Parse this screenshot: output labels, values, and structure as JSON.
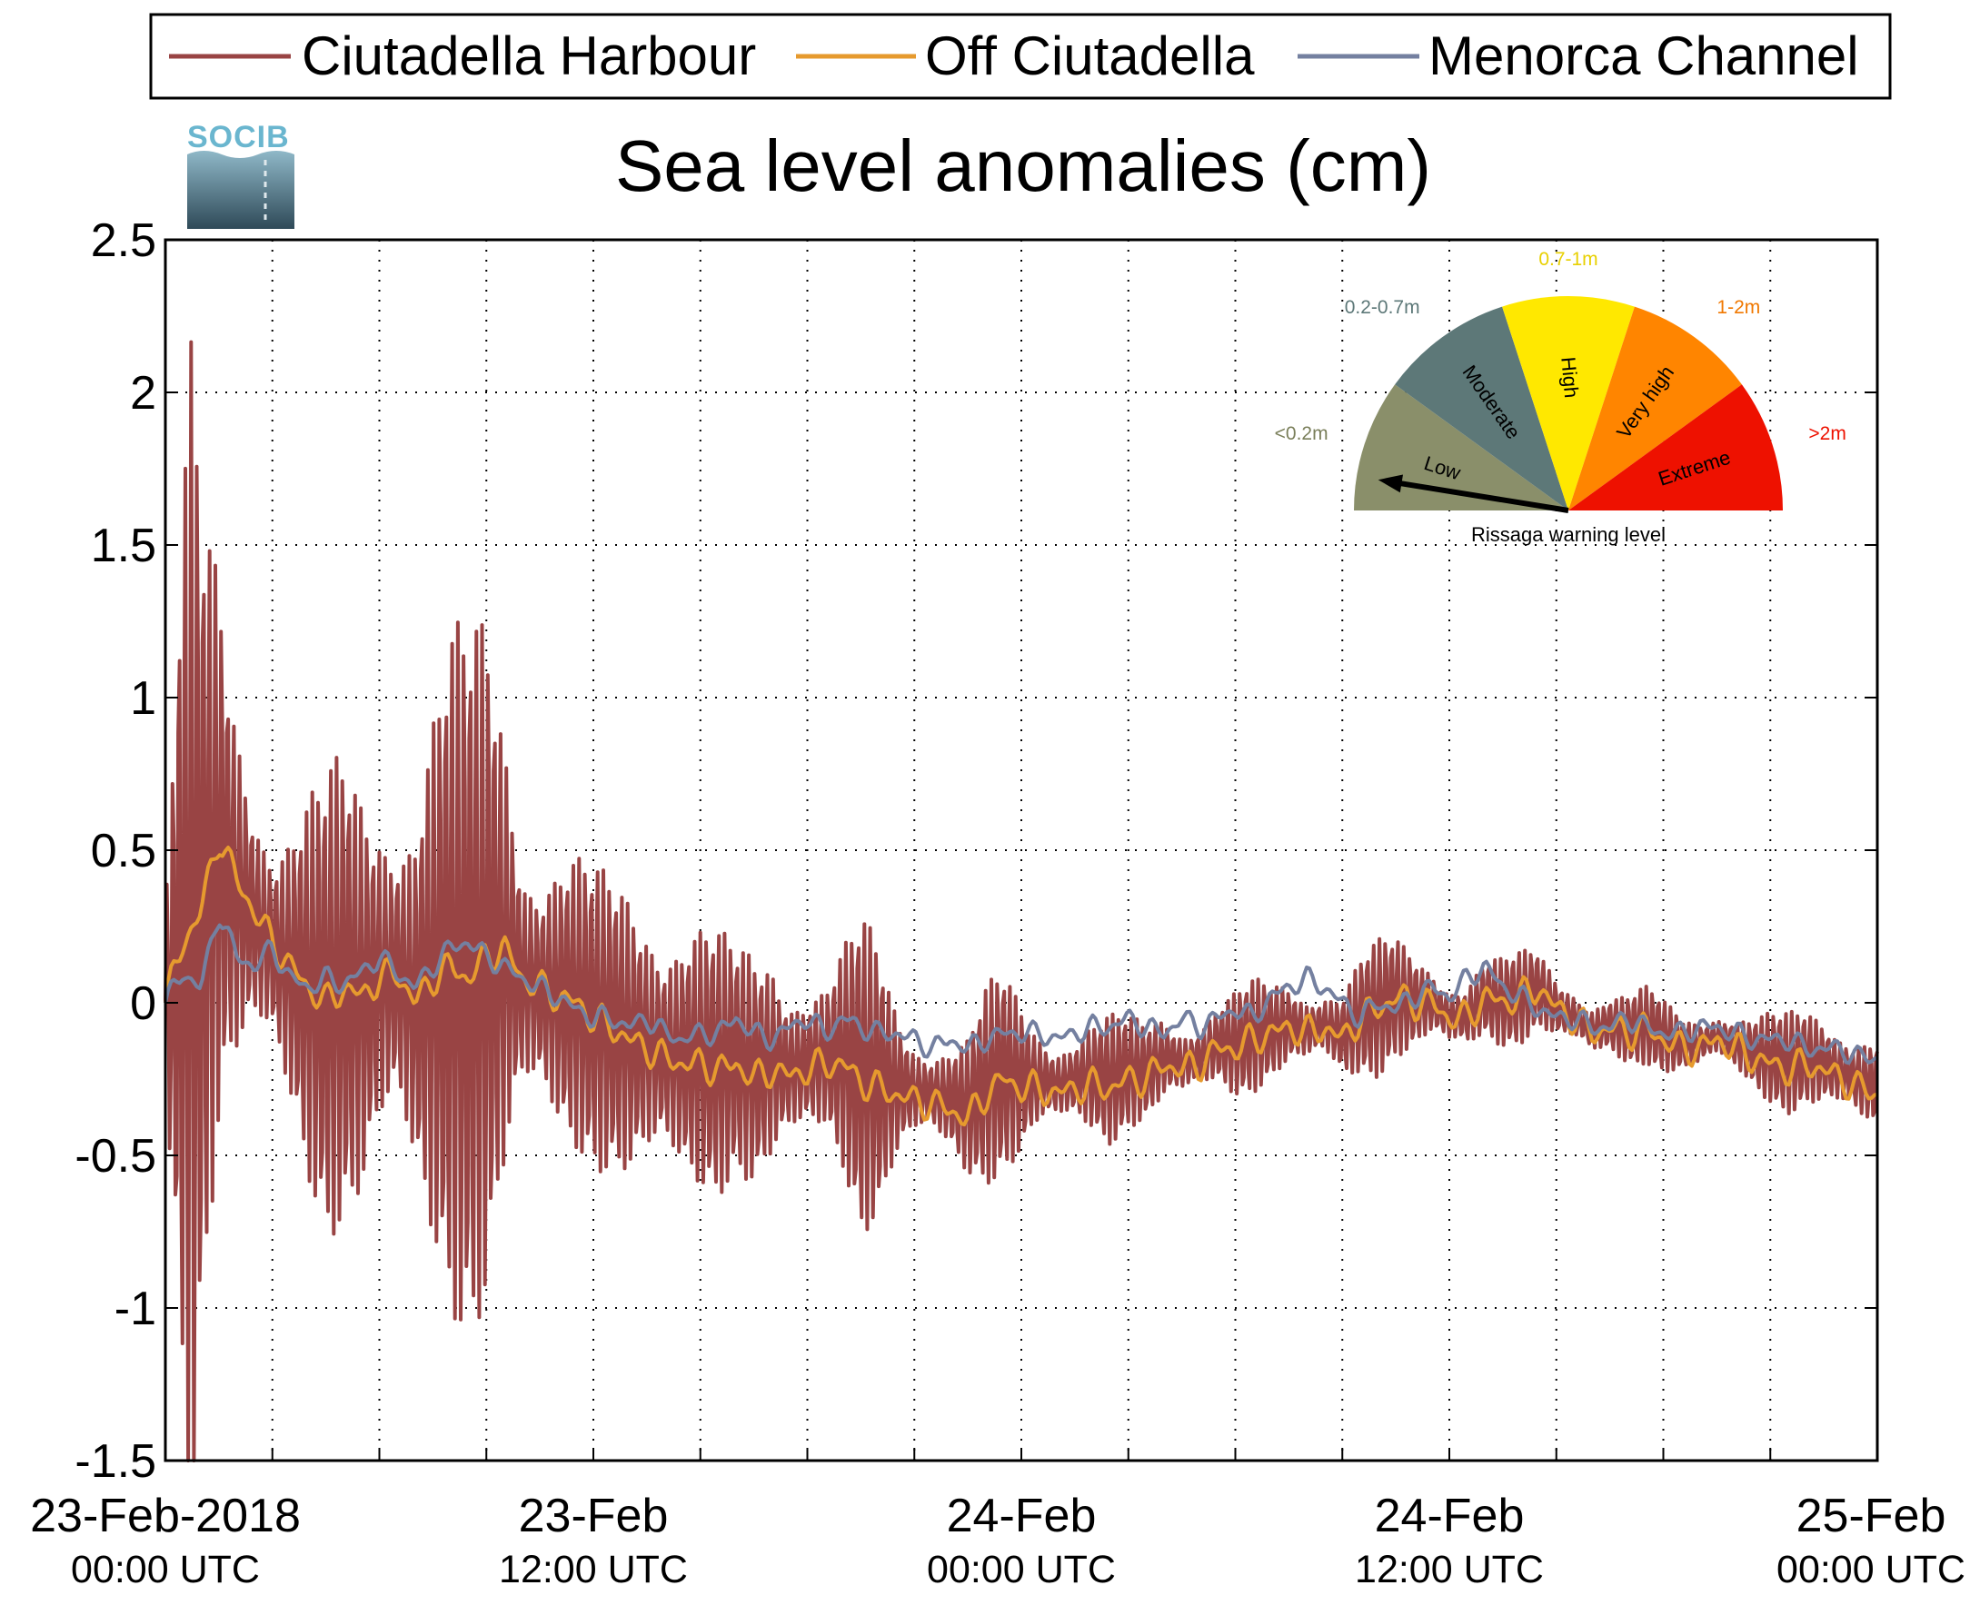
{
  "chart_data": {
    "type": "line",
    "title": "Sea level anomalies (cm)",
    "xlabel": "",
    "ylabel": "",
    "ylim": [
      -1.5,
      2.5
    ],
    "y_ticks": [
      "-1.5",
      "-1",
      "-0.5",
      "0",
      "0.5",
      "1",
      "1.5",
      "2",
      "2.5"
    ],
    "x_range_hours": [
      0,
      48
    ],
    "x_tick_labels": [
      {
        "date": "23-Feb-2018",
        "time": "00:00 UTC"
      },
      {
        "date": "23-Feb",
        "time": "12:00 UTC"
      },
      {
        "date": "24-Feb",
        "time": "00:00 UTC"
      },
      {
        "date": "24-Feb",
        "time": "12:00 UTC"
      },
      {
        "date": "25-Feb",
        "time": "00:00 UTC"
      }
    ],
    "grid": true,
    "legend_position": "top",
    "series": [
      {
        "name": "Ciutadella Harbour",
        "color": "#994444",
        "x": [
          0,
          0.25,
          0.5,
          0.75,
          1,
          1.25,
          1.5,
          1.75,
          2,
          2.5,
          3,
          3.5,
          4,
          4.5,
          5,
          5.5,
          6,
          6.5,
          7,
          7.5,
          8,
          8.5,
          9,
          9.5,
          10,
          10.5,
          11,
          11.5,
          12,
          12.5,
          13,
          13.5,
          14,
          14.5,
          15,
          15.5,
          16,
          16.5,
          17,
          17.5,
          18,
          18.5,
          19,
          19.5,
          20,
          20.5,
          21,
          21.5,
          22,
          22.5,
          23,
          23.5,
          24,
          24.5,
          25,
          25.5,
          26,
          26.5,
          27,
          27.5,
          28,
          28.5,
          29,
          29.5,
          30,
          30.5,
          31,
          31.5,
          32,
          32.5,
          33,
          33.5,
          34,
          34.5,
          35,
          35.5,
          36,
          36.5,
          37,
          37.5,
          38,
          38.5,
          39,
          39.5,
          40,
          40.5,
          41,
          41.5,
          42,
          42.5,
          43,
          43.5,
          44,
          44.5,
          45,
          45.5,
          46,
          46.5,
          47,
          47.5,
          48
        ],
        "amplitude": [
          0.5,
          1.2,
          1.9,
          2.4,
          1.6,
          1.4,
          1.2,
          1.0,
          0.95,
          0.85,
          0.75,
          0.8,
          0.85,
          0.9,
          0.95,
          1.0,
          1.05,
          1.1,
          1.2,
          1.3,
          1.35,
          1.4,
          1.55,
          1.4,
          0.9,
          0.75,
          0.7,
          0.62,
          0.58,
          0.62,
          0.75,
          0.85,
          0.8,
          0.72,
          0.6,
          0.52,
          0.45,
          0.55,
          0.65,
          0.55,
          0.45,
          0.35,
          0.45,
          0.62,
          0.6,
          0.42,
          0.32,
          0.28,
          0.28,
          0.3,
          0.38,
          0.42,
          0.38,
          0.3,
          0.26,
          0.24,
          0.26,
          0.26,
          0.22,
          0.22,
          0.24,
          0.22,
          0.2,
          0.2,
          0.22,
          0.22,
          0.2,
          0.2,
          0.2,
          0.22,
          0.25,
          0.27,
          0.27,
          0.24,
          0.22,
          0.2,
          0.2,
          0.2,
          0.2,
          0.18,
          0.18,
          0.17,
          0.16,
          0.16,
          0.16,
          0.15,
          0.15,
          0.15,
          0.15,
          0.14,
          0.14,
          0.14,
          0.15,
          0.16,
          0.18,
          0.2,
          0.22,
          0.25,
          0.26,
          0.27,
          0.24
        ]
      },
      {
        "name": "Off Ciutadella",
        "color": "#E69A2E",
        "x": [
          0,
          0.5,
          1,
          1.5,
          2,
          2.5,
          3,
          3.5,
          4,
          4.5,
          5,
          5.5,
          6,
          6.5,
          7,
          7.5,
          8,
          8.5,
          9,
          9.5,
          10,
          10.5,
          11,
          11.5,
          12,
          12.5,
          13,
          13.5,
          14,
          14.5,
          15,
          15.5,
          16,
          16.5,
          17,
          17.5,
          18,
          18.5,
          19,
          19.5,
          20,
          20.5,
          21,
          21.5,
          22,
          22.5,
          23,
          23.5,
          24,
          24.5,
          25,
          25.5,
          26,
          26.5,
          27,
          27.5,
          28,
          28.5,
          29,
          29.5,
          30,
          30.5,
          31,
          31.5,
          32,
          32.5,
          33,
          33.5,
          34,
          34.5,
          35,
          35.5,
          36,
          36.5,
          37,
          37.5,
          38,
          38.5,
          39,
          39.5,
          40,
          40.5,
          41,
          41.5,
          42,
          42.5,
          43,
          43.5,
          44,
          44.5,
          45,
          45.5,
          46,
          46.5,
          47,
          47.5,
          48
        ],
        "values": [
          0.0,
          0.2,
          0.3,
          0.55,
          0.4,
          0.3,
          0.2,
          0.12,
          0.05,
          0.0,
          0.05,
          0.02,
          0.08,
          0.1,
          0.0,
          0.08,
          0.12,
          0.08,
          0.15,
          0.18,
          0.08,
          0.05,
          0.02,
          0.0,
          -0.05,
          -0.08,
          -0.12,
          -0.15,
          -0.18,
          -0.2,
          -0.2,
          -0.22,
          -0.2,
          -0.25,
          -0.22,
          -0.24,
          -0.22,
          -0.2,
          -0.2,
          -0.26,
          -0.28,
          -0.3,
          -0.32,
          -0.33,
          -0.35,
          -0.38,
          -0.3,
          -0.25,
          -0.28,
          -0.28,
          -0.3,
          -0.28,
          -0.27,
          -0.28,
          -0.25,
          -0.25,
          -0.2,
          -0.22,
          -0.2,
          -0.15,
          -0.15,
          -0.12,
          -0.1,
          -0.08,
          -0.1,
          -0.08,
          -0.12,
          -0.05,
          -0.02,
          0.02,
          0.0,
          0.0,
          -0.05,
          -0.05,
          0.02,
          0.0,
          0.02,
          0.05,
          -0.02,
          -0.05,
          -0.1,
          -0.08,
          -0.1,
          -0.08,
          -0.12,
          -0.15,
          -0.15,
          -0.12,
          -0.15,
          -0.18,
          -0.2,
          -0.22,
          -0.2,
          -0.22,
          -0.25,
          -0.28,
          -0.3
        ]
      },
      {
        "name": "Menorca Channel",
        "color": "#7480A0",
        "x": [
          0,
          0.5,
          1,
          1.5,
          2,
          2.5,
          3,
          3.5,
          4,
          4.5,
          5,
          5.5,
          6,
          6.5,
          7,
          7.5,
          8,
          8.5,
          9,
          9.5,
          10,
          10.5,
          11,
          11.5,
          12,
          12.5,
          13,
          13.5,
          14,
          14.5,
          15,
          15.5,
          16,
          16.5,
          17,
          17.5,
          18,
          18.5,
          19,
          19.5,
          20,
          20.5,
          21,
          21.5,
          22,
          22.5,
          23,
          23.5,
          24,
          24.5,
          25,
          25.5,
          26,
          26.5,
          27,
          27.5,
          28,
          28.5,
          29,
          29.5,
          30,
          30.5,
          31,
          31.5,
          32,
          32.5,
          33,
          33.5,
          34,
          34.5,
          35,
          35.5,
          36,
          36.5,
          37,
          37.5,
          38,
          38.5,
          39,
          39.5,
          40,
          40.5,
          41,
          41.5,
          42,
          42.5,
          43,
          43.5,
          44,
          44.5,
          45,
          45.5,
          46,
          46.5,
          47,
          47.5,
          48
        ],
        "values": [
          0.0,
          0.1,
          0.05,
          0.3,
          0.15,
          0.12,
          0.18,
          0.08,
          0.05,
          0.08,
          0.06,
          0.1,
          0.15,
          0.1,
          0.05,
          0.12,
          0.18,
          0.2,
          0.15,
          0.12,
          0.08,
          0.05,
          0.02,
          -0.02,
          -0.05,
          -0.05,
          -0.08,
          -0.05,
          -0.1,
          -0.12,
          -0.1,
          -0.1,
          -0.05,
          -0.1,
          -0.12,
          -0.08,
          -0.05,
          -0.1,
          -0.05,
          -0.08,
          -0.1,
          -0.1,
          -0.12,
          -0.15,
          -0.12,
          -0.15,
          -0.12,
          -0.1,
          -0.1,
          -0.1,
          -0.12,
          -0.1,
          -0.08,
          -0.08,
          -0.05,
          -0.08,
          -0.1,
          -0.05,
          -0.08,
          -0.05,
          -0.02,
          -0.05,
          0.02,
          0.05,
          0.08,
          0.05,
          0.0,
          -0.05,
          0.0,
          -0.02,
          0.02,
          0.05,
          0.02,
          0.08,
          0.12,
          0.05,
          0.02,
          -0.02,
          -0.05,
          -0.05,
          -0.08,
          -0.08,
          -0.05,
          -0.08,
          -0.1,
          -0.1,
          -0.08,
          -0.08,
          -0.1,
          -0.12,
          -0.12,
          -0.12,
          -0.15,
          -0.15,
          -0.15,
          -0.18,
          -0.18
        ]
      }
    ]
  },
  "logo": {
    "text": "SOCIB"
  },
  "gauge": {
    "caption": "Rissaga warning level",
    "sectors": [
      {
        "name": "Low",
        "range": "<0.2m",
        "color": "#8A8F6A"
      },
      {
        "name": "Moderate",
        "range": "0.2-0.7m",
        "color": "#5D7878"
      },
      {
        "name": "High",
        "range": "0.7-1m",
        "color": "#FFE800"
      },
      {
        "name": "Very high",
        "range": "1-2m",
        "color": "#FF8500"
      },
      {
        "name": "Extreme",
        "range": ">2m",
        "color": "#EE1100"
      }
    ],
    "label_colors": {
      "<0.2m": "#7A7F5A",
      "0.2-0.7m": "#5D7878",
      "0.7-1m": "#E8D000",
      "1-2m": "#F07800",
      ">2m": "#EE1100"
    },
    "needle_level": "Low"
  }
}
